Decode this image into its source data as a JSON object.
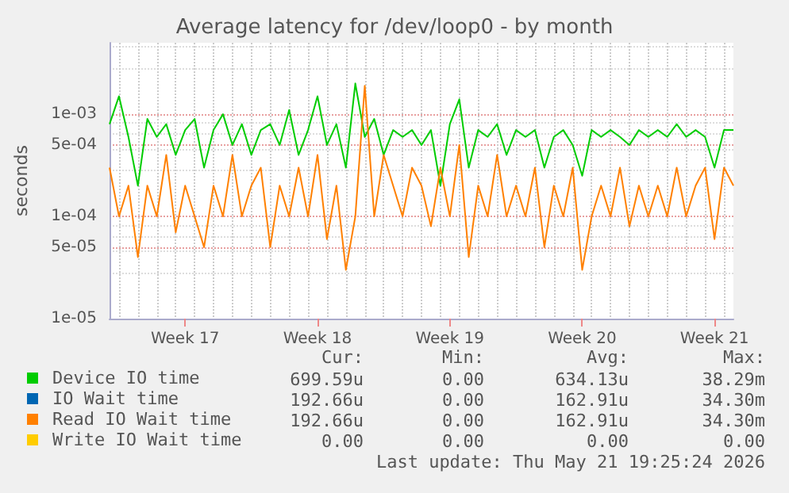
{
  "chart_data": {
    "type": "line",
    "title": "Average latency for /dev/loop0 - by month",
    "ylabel": "seconds",
    "categories": [
      null,
      null,
      null,
      null,
      null,
      null,
      null,
      null,
      "Week 17",
      null,
      null,
      null,
      null,
      null,
      null,
      null,
      null,
      null,
      null,
      null,
      null,
      null,
      "Week 18",
      null,
      null,
      null,
      null,
      null,
      null,
      null,
      null,
      null,
      null,
      null,
      null,
      null,
      "Week 19",
      null,
      null,
      null,
      null,
      null,
      null,
      null,
      null,
      null,
      null,
      null,
      null,
      null,
      "Week 20",
      null,
      null,
      null,
      null,
      null,
      null,
      null,
      null,
      null,
      null,
      null,
      null,
      null,
      "Week 21",
      null,
      null
    ],
    "series": [
      {
        "name": "Device IO time",
        "color": "#00cc00",
        "values": [
          0.0008,
          0.0015,
          0.0006,
          0.0002,
          0.0009,
          0.0006,
          0.0008,
          0.0004,
          0.0007,
          0.0009,
          0.0003,
          0.0007,
          0.001,
          0.0005,
          0.0008,
          0.0004,
          0.0007,
          0.0008,
          0.0005,
          0.0011,
          0.0004,
          0.0007,
          0.0015,
          0.0005,
          0.0008,
          0.0003,
          0.002,
          0.0006,
          0.0009,
          0.0004,
          0.0007,
          0.0006,
          0.0007,
          0.0005,
          0.0007,
          0.0002,
          0.0008,
          0.0014,
          0.0003,
          0.0007,
          0.0006,
          0.0008,
          0.0004,
          0.0007,
          0.0006,
          0.0007,
          0.0003,
          0.0006,
          0.0007,
          0.0005,
          0.00025,
          0.0007,
          0.0006,
          0.0007,
          0.0006,
          0.0005,
          0.0007,
          0.0006,
          0.0007,
          0.0006,
          0.0008,
          0.0006,
          0.0007,
          0.0006,
          0.0003,
          0.0007,
          0.0007
        ]
      },
      {
        "name": "IO Wait time",
        "color": "#0066b3",
        "values": [
          null,
          null,
          null,
          null,
          null,
          null,
          null,
          null,
          null,
          null,
          null,
          null,
          null,
          null,
          null,
          null,
          null,
          null,
          null,
          null,
          null,
          null,
          null,
          null,
          null,
          null,
          null,
          null,
          null,
          null,
          null,
          null,
          null,
          null,
          null,
          null,
          null,
          null,
          null,
          null,
          null,
          null,
          null,
          null,
          null,
          null,
          null,
          null,
          null,
          null,
          null,
          null,
          null,
          null,
          null,
          null,
          null,
          null,
          null,
          null,
          null,
          null,
          null,
          null,
          null,
          null,
          null
        ]
      },
      {
        "name": "Read IO Wait time",
        "color": "#ff8000",
        "values": [
          0.0003,
          0.0001,
          0.0002,
          4e-05,
          0.0002,
          0.0001,
          0.0004,
          7e-05,
          0.0002,
          0.0001,
          5e-05,
          0.0002,
          0.0001,
          0.0004,
          0.0001,
          0.0002,
          0.0003,
          5e-05,
          0.0002,
          0.0001,
          0.0003,
          0.0001,
          0.0004,
          6e-05,
          0.0002,
          3e-05,
          0.0001,
          0.0019,
          0.0001,
          0.0004,
          0.0002,
          0.0001,
          0.0003,
          0.0002,
          8e-05,
          0.0003,
          0.0001,
          0.0005,
          4e-05,
          0.0002,
          0.0001,
          0.0004,
          0.0001,
          0.0002,
          0.0001,
          0.0003,
          5e-05,
          0.0002,
          0.0001,
          0.0003,
          3e-05,
          0.0001,
          0.0002,
          0.0001,
          0.0003,
          8e-05,
          0.0002,
          0.0001,
          0.0002,
          0.0001,
          0.0003,
          0.0001,
          0.0002,
          0.0003,
          6e-05,
          0.0003,
          0.0002
        ]
      },
      {
        "name": "Write IO Wait time",
        "color": "#ffcc00",
        "values": [
          null,
          null,
          null,
          null,
          null,
          null,
          null,
          null,
          null,
          null,
          null,
          null,
          null,
          null,
          null,
          null,
          null,
          null,
          null,
          null,
          null,
          null,
          null,
          null,
          null,
          null,
          null,
          null,
          null,
          null,
          null,
          null,
          null,
          null,
          null,
          null,
          null,
          null,
          null,
          null,
          null,
          null,
          null,
          null,
          null,
          null,
          null,
          null,
          null,
          null,
          null,
          null,
          null,
          null,
          null,
          null,
          null,
          null,
          null,
          null,
          null,
          null,
          null,
          null,
          null,
          null,
          null
        ]
      }
    ],
    "log": "y",
    "ylim": [
      1e-05,
      0.005
    ],
    "yticks": [
      {
        "value": 1e-05,
        "label": "1e-05"
      },
      {
        "value": 5e-05,
        "label": "5e-05"
      },
      {
        "value": 0.0001,
        "label": "1e-04"
      },
      {
        "value": 0.0005,
        "label": "5e-04"
      },
      {
        "value": 0.001,
        "label": "1e-03"
      }
    ],
    "grid": true,
    "legend": "bottom",
    "annotations": [
      "Cur:",
      "Min:",
      "Avg:",
      "Max:",
      "699.59u",
      "0.00",
      "634.13u",
      "38.29m",
      "192.66u",
      "0.00",
      "162.91u",
      "34.30m",
      "192.66u",
      "0.00",
      "162.91u",
      "34.30m",
      "0.00",
      "0.00",
      "0.00",
      "0.00",
      "Last update: Thu May 21 19:25:24 2026"
    ]
  }
}
